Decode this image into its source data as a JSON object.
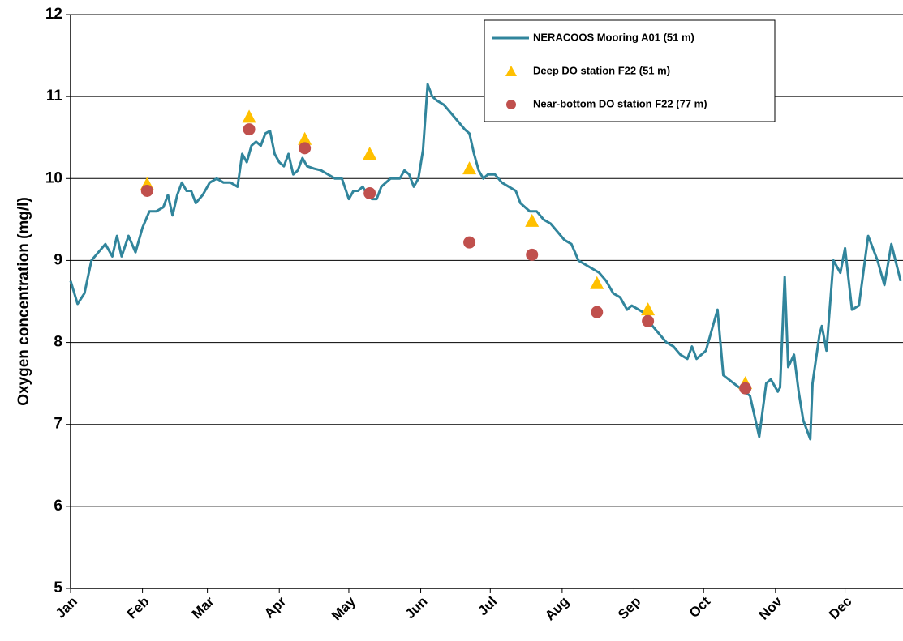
{
  "chart_data": {
    "type": "line",
    "y_label": "Oxygen concentration (mg/l)",
    "xlim": [
      0,
      359
    ],
    "xticks": [
      {
        "value": 0,
        "label": "Jan"
      },
      {
        "value": 31,
        "label": "Feb"
      },
      {
        "value": 59,
        "label": "Mar"
      },
      {
        "value": 90,
        "label": "Apr"
      },
      {
        "value": 120,
        "label": "May"
      },
      {
        "value": 151,
        "label": "Jun"
      },
      {
        "value": 181,
        "label": "Jul"
      },
      {
        "value": 212,
        "label": "Aug"
      },
      {
        "value": 243,
        "label": "Sep"
      },
      {
        "value": 273,
        "label": "Oct"
      },
      {
        "value": 304,
        "label": "Nov"
      },
      {
        "value": 334,
        "label": "Dec"
      }
    ],
    "ylim": [
      5,
      12
    ],
    "yticks": [
      5,
      6,
      7,
      8,
      9,
      10,
      11,
      12
    ],
    "grid": true,
    "legend": "top-right",
    "series": [
      {
        "name": "NERACOOS Mooring A01 (51 m)",
        "type": "line",
        "color": "#31859c",
        "x": [
          0,
          3,
          6,
          9,
          12,
          15,
          18,
          20,
          22,
          25,
          28,
          31,
          34,
          37,
          40,
          42,
          44,
          46,
          48,
          50,
          52,
          54,
          57,
          60,
          63,
          66,
          69,
          72,
          74,
          76,
          78,
          80,
          82,
          84,
          86,
          88,
          90,
          92,
          94,
          96,
          98,
          100,
          102,
          105,
          108,
          111,
          114,
          117,
          120,
          122,
          124,
          126,
          128,
          130,
          132,
          134,
          136,
          138,
          140,
          142,
          144,
          146,
          148,
          150,
          152,
          154,
          156,
          158,
          161,
          164,
          167,
          170,
          172,
          174,
          176,
          178,
          180,
          183,
          186,
          189,
          192,
          194,
          196,
          198,
          201,
          204,
          207,
          210,
          213,
          216,
          219,
          222,
          225,
          228,
          231,
          234,
          237,
          240,
          242,
          245,
          248,
          251,
          254,
          257,
          260,
          263,
          266,
          268,
          270,
          274,
          279,
          281.5,
          286,
          293,
          297,
          300,
          302,
          305,
          306,
          308,
          309.5,
          312,
          314,
          316,
          319,
          320,
          323,
          324,
          326,
          329,
          332,
          334,
          337,
          340,
          344,
          348,
          351,
          354,
          358
        ],
        "values": [
          8.75,
          8.47,
          8.6,
          9.0,
          9.1,
          9.2,
          9.05,
          9.3,
          9.05,
          9.3,
          9.1,
          9.4,
          9.6,
          9.6,
          9.65,
          9.8,
          9.55,
          9.8,
          9.95,
          9.85,
          9.85,
          9.7,
          9.8,
          9.95,
          10.0,
          9.95,
          9.95,
          9.9,
          10.3,
          10.2,
          10.4,
          10.45,
          10.4,
          10.55,
          10.58,
          10.3,
          10.2,
          10.15,
          10.3,
          10.05,
          10.1,
          10.25,
          10.15,
          10.12,
          10.1,
          10.05,
          10.0,
          10.0,
          9.75,
          9.85,
          9.85,
          9.9,
          9.8,
          9.75,
          9.75,
          9.9,
          9.95,
          10.0,
          10.0,
          10.0,
          10.1,
          10.05,
          9.9,
          10.0,
          10.35,
          11.15,
          11.0,
          10.95,
          10.9,
          10.8,
          10.7,
          10.6,
          10.55,
          10.3,
          10.1,
          10.0,
          10.05,
          10.05,
          9.95,
          9.9,
          9.85,
          9.7,
          9.65,
          9.6,
          9.6,
          9.5,
          9.45,
          9.35,
          9.25,
          9.2,
          9.0,
          8.95,
          8.9,
          8.85,
          8.75,
          8.6,
          8.55,
          8.4,
          8.45,
          8.4,
          8.35,
          8.2,
          8.1,
          8.0,
          7.95,
          7.85,
          7.8,
          7.95,
          7.8,
          7.9,
          8.4,
          7.6,
          7.5,
          7.35,
          6.85,
          7.5,
          7.55,
          7.4,
          7.45,
          8.8,
          7.7,
          7.85,
          7.4,
          7.05,
          6.82,
          7.5,
          8.1,
          8.2,
          7.9,
          9.0,
          8.85,
          9.15,
          8.4,
          8.45,
          9.3,
          9.0,
          8.7,
          9.2,
          8.75
        ]
      },
      {
        "name": "Deep DO station F22 (51 m)",
        "type": "scatter",
        "marker": "triangle",
        "color": "#ffc000",
        "x": [
          33,
          77,
          101,
          129,
          172,
          199,
          227,
          249,
          291
        ],
        "values": [
          9.93,
          10.75,
          10.48,
          10.3,
          10.12,
          9.48,
          8.72,
          8.4,
          7.5
        ]
      },
      {
        "name": "Near-bottom DO station F22 (77 m)",
        "type": "scatter",
        "marker": "circle",
        "color": "#c0504d",
        "x": [
          33,
          77,
          101,
          129,
          172,
          199,
          227,
          249,
          291
        ],
        "values": [
          9.85,
          10.6,
          10.37,
          9.82,
          9.22,
          9.07,
          8.37,
          8.26,
          7.44
        ]
      }
    ]
  }
}
